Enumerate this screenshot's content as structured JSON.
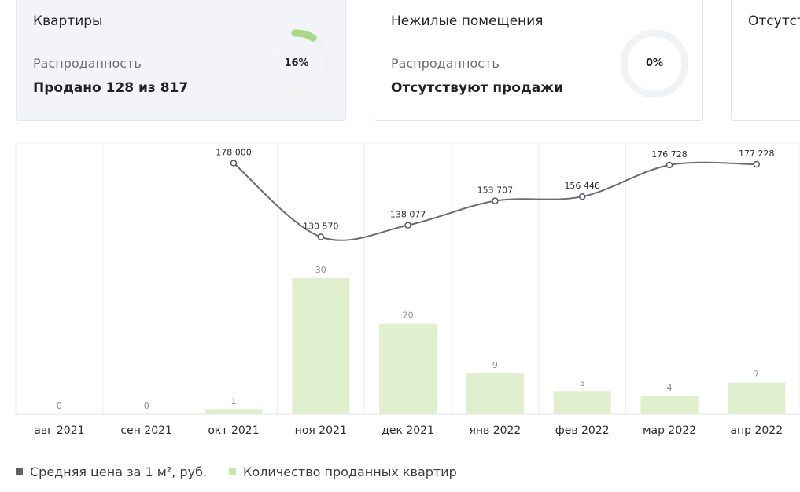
{
  "cards": [
    {
      "title": "Квартиры",
      "subtitle": "Распроданность",
      "value": "Продано 128 из 817",
      "percent": "16%",
      "fraction": 0.16
    },
    {
      "title": "Нежилые помещения",
      "subtitle": "Распроданность",
      "value": "Отсутствуют продажи",
      "percent": "0%",
      "fraction": 0
    },
    {
      "title": "Отсутст"
    }
  ],
  "colors": {
    "accent_green": "#a8d98a",
    "bar_green": "#e0efcd",
    "line": "#6b6b7b",
    "track": "#f1f2f4",
    "grid": "#ececec"
  },
  "legend": {
    "line_label": "Средняя цена за 1 м², руб.",
    "bar_label": "Количество проданных квартир"
  },
  "chart_data": {
    "type": "bar",
    "categories": [
      "авг 2021",
      "сен 2021",
      "окт 2021",
      "ноя 2021",
      "дек 2021",
      "янв 2022",
      "фев 2022",
      "мар 2022",
      "апр 2022"
    ],
    "series": [
      {
        "name": "Количество проданных квартир",
        "type": "bar",
        "values": [
          0,
          0,
          1,
          30,
          20,
          9,
          5,
          4,
          7
        ],
        "labels": [
          "0",
          "0",
          "1",
          "30",
          "20",
          "9",
          "5",
          "4",
          "7"
        ]
      },
      {
        "name": "Средняя цена за 1 м², руб.",
        "type": "line",
        "values": [
          null,
          null,
          178000,
          130570,
          138077,
          153707,
          156446,
          176728,
          177228
        ],
        "labels": [
          "",
          "",
          "178 000",
          "130 570",
          "138 077",
          "153 707",
          "156 446",
          "176 728",
          "177 228"
        ]
      }
    ],
    "grid": "vertical",
    "legend_position": "bottom-left"
  }
}
